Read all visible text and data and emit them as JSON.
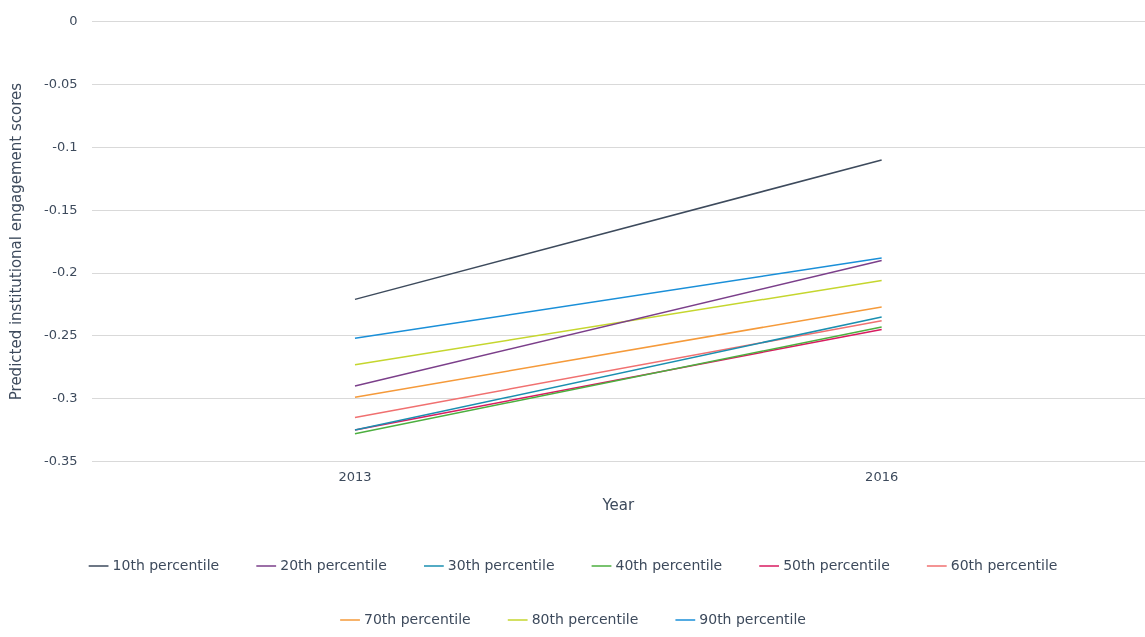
{
  "chart_data": {
    "type": "line",
    "xlabel": "Year",
    "ylabel": "Predicted institutional engagement scores",
    "categories": [
      "2013",
      "2016"
    ],
    "series": [
      {
        "name": "10th percentile",
        "color": "#3d4a5c",
        "values": [
          -0.221,
          -0.11
        ]
      },
      {
        "name": "20th percentile",
        "color": "#7b3f8a",
        "values": [
          -0.29,
          -0.19
        ]
      },
      {
        "name": "30th percentile",
        "color": "#1a8fb0",
        "values": [
          -0.325,
          -0.235
        ]
      },
      {
        "name": "40th percentile",
        "color": "#4caf3f",
        "values": [
          -0.328,
          -0.243
        ]
      },
      {
        "name": "50th percentile",
        "color": "#d81b60",
        "values": [
          -0.325,
          -0.245
        ]
      },
      {
        "name": "60th percentile",
        "color": "#f07070",
        "values": [
          -0.315,
          -0.238
        ]
      },
      {
        "name": "70th percentile",
        "color": "#f59a3a",
        "values": [
          -0.299,
          -0.227
        ]
      },
      {
        "name": "80th percentile",
        "color": "#c5d62e",
        "values": [
          -0.273,
          -0.206
        ]
      },
      {
        "name": "90th percentile",
        "color": "#1a8fd8",
        "values": [
          -0.252,
          -0.188
        ]
      }
    ],
    "ylim": [
      -0.35,
      0
    ],
    "yticks": [
      -0.35,
      -0.3,
      -0.25,
      -0.2,
      -0.15,
      -0.1,
      -0.05,
      0
    ],
    "grid": "y",
    "legend": "bottom",
    "marker": "none",
    "line_style": "solid"
  }
}
